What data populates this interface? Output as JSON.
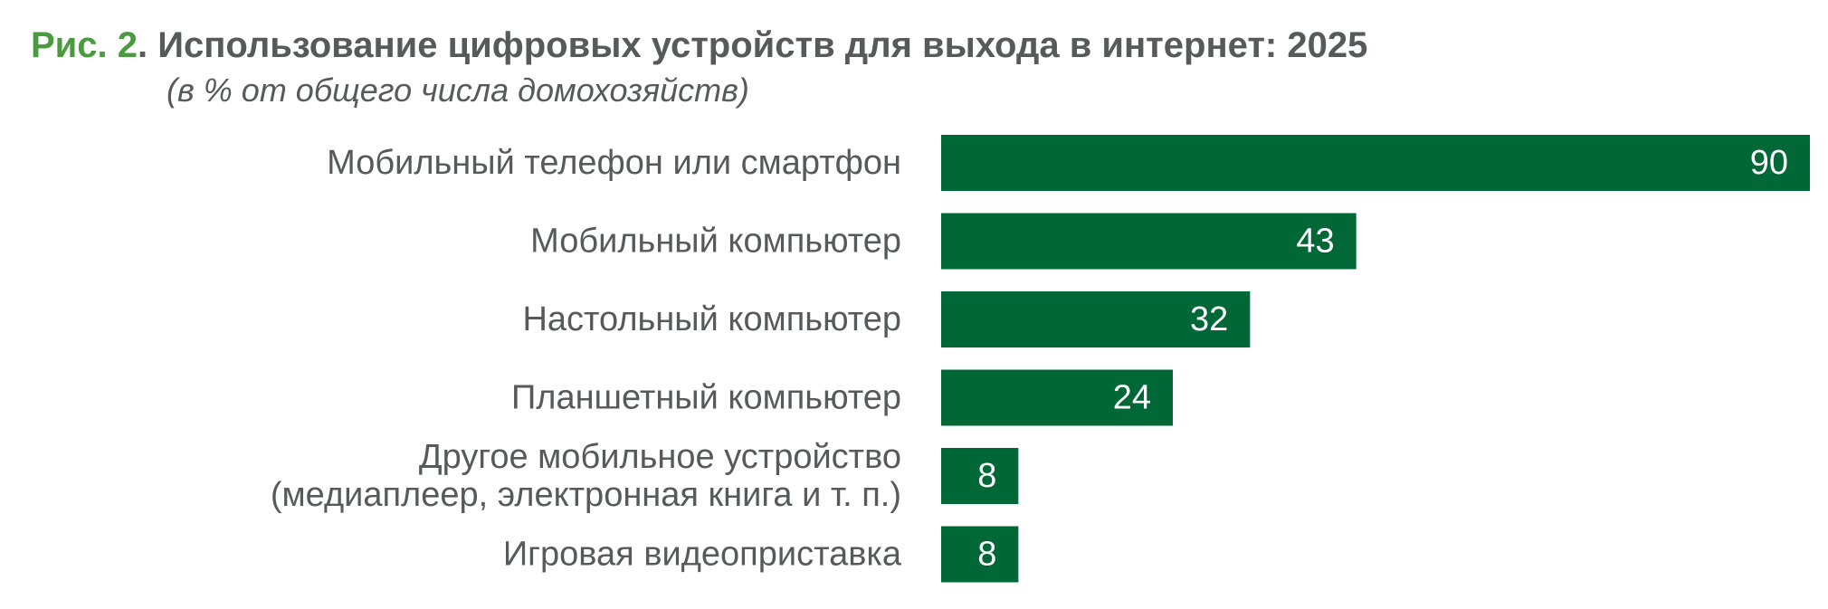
{
  "title": {
    "figure_label": "Рис. 2",
    "separator": ". ",
    "text": "Использование цифровых устройств для выхода в интернет: 2025"
  },
  "subtitle": "(в % от общего числа домохозяйств)",
  "colors": {
    "bar": "#006837",
    "figure_label": "#4a9a3f",
    "text": "#58595b",
    "value_text": "#ffffff"
  },
  "chart_data": {
    "type": "bar",
    "orientation": "horizontal",
    "title": "Использование цифровых устройств для выхода в интернет: 2025",
    "subtitle": "(в % от общего числа домохозяйств)",
    "categories": [
      [
        "Мобильный телефон или смартфон"
      ],
      [
        "Мобильный компьютер"
      ],
      [
        "Настольный компьютер"
      ],
      [
        "Планшетный компьютер"
      ],
      [
        "Другое мобильное устройство",
        "(медиаплеер, электронная книга и т. п.)"
      ],
      [
        "Игровая видеоприставка"
      ]
    ],
    "values": [
      90,
      43,
      32,
      24,
      8,
      8
    ],
    "value_labels": [
      "90",
      "43",
      "32",
      "24",
      "8",
      "8"
    ],
    "xlim": [
      0,
      90
    ],
    "grid": false,
    "legend": false,
    "data_labels": "inside-end"
  }
}
